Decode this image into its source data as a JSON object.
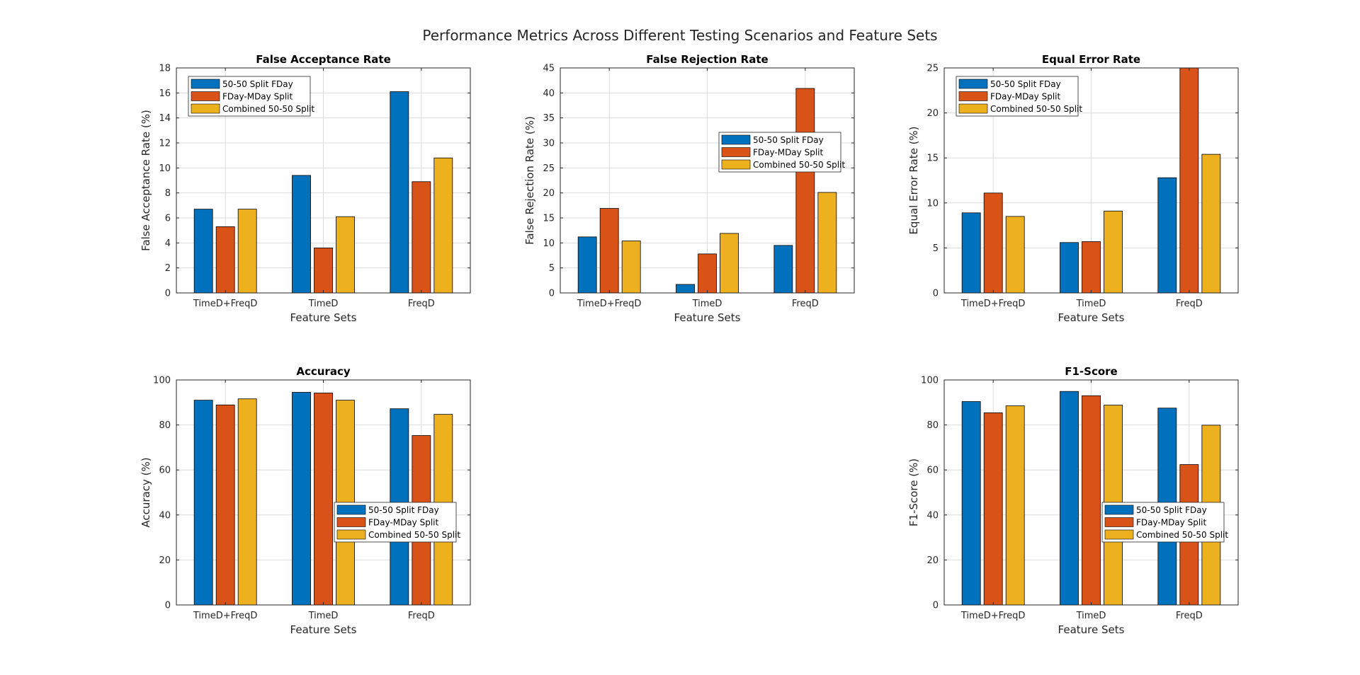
{
  "figure_title": "Performance Metrics Across Different Testing Scenarios and Feature Sets",
  "colors": {
    "series1": "#0072BD",
    "series2": "#D95319",
    "series3": "#EDB120"
  },
  "chart_data": [
    {
      "id": "far",
      "type": "bar",
      "title": "False Acceptance Rate",
      "xlabel": "Feature Sets",
      "ylabel": "False Acceptance Rate (%)",
      "categories": [
        "TimeD+FreqD",
        "TimeD",
        "FreqD"
      ],
      "ylim": [
        0,
        18
      ],
      "yticks": [
        0,
        2,
        4,
        6,
        8,
        10,
        12,
        14,
        16,
        18
      ],
      "grid": true,
      "legend_location": "top-left",
      "series": [
        {
          "name": "50-50 Split FDay",
          "values": [
            6.7,
            9.4,
            16.1
          ]
        },
        {
          "name": "FDay-MDay Split",
          "values": [
            5.3,
            3.6,
            8.9
          ]
        },
        {
          "name": "Combined 50-50 Split",
          "values": [
            6.7,
            6.1,
            10.8
          ]
        }
      ]
    },
    {
      "id": "frr",
      "type": "bar",
      "title": "False Rejection Rate",
      "xlabel": "Feature Sets",
      "ylabel": "False Rejection Rate (%)",
      "categories": [
        "TimeD+FreqD",
        "TimeD",
        "FreqD"
      ],
      "ylim": [
        0,
        45
      ],
      "yticks": [
        0,
        5,
        10,
        15,
        20,
        25,
        30,
        35,
        40,
        45
      ],
      "grid": true,
      "legend_location": "middle-right",
      "series": [
        {
          "name": "50-50 Split FDay",
          "values": [
            11.2,
            1.7,
            9.5
          ]
        },
        {
          "name": "FDay-MDay Split",
          "values": [
            16.9,
            7.8,
            40.9
          ]
        },
        {
          "name": "Combined 50-50 Split",
          "values": [
            10.4,
            11.9,
            20.1
          ]
        }
      ]
    },
    {
      "id": "eer",
      "type": "bar",
      "title": "Equal Error Rate",
      "xlabel": "Feature Sets",
      "ylabel": "Equal Error Rate (%)",
      "categories": [
        "TimeD+FreqD",
        "TimeD",
        "FreqD"
      ],
      "ylim": [
        0,
        25
      ],
      "yticks": [
        0,
        5,
        10,
        15,
        20,
        25
      ],
      "grid": true,
      "legend_location": "top-left",
      "series": [
        {
          "name": "50-50 Split FDay",
          "values": [
            8.9,
            5.6,
            12.8
          ]
        },
        {
          "name": "FDay-MDay Split",
          "values": [
            11.1,
            5.7,
            25.0
          ]
        },
        {
          "name": "Combined 50-50 Split",
          "values": [
            8.5,
            9.1,
            15.4
          ]
        }
      ]
    },
    {
      "id": "acc",
      "type": "bar",
      "title": "Accuracy",
      "xlabel": "Feature Sets",
      "ylabel": "Accuracy (%)",
      "categories": [
        "TimeD+FreqD",
        "TimeD",
        "FreqD"
      ],
      "ylim": [
        0,
        100
      ],
      "yticks": [
        0,
        20,
        40,
        60,
        80,
        100
      ],
      "grid": true,
      "legend_location": "bottom-right",
      "series": [
        {
          "name": "50-50 Split FDay",
          "values": [
            91.0,
            94.5,
            87.2
          ]
        },
        {
          "name": "FDay-MDay Split",
          "values": [
            88.9,
            94.2,
            75.3
          ]
        },
        {
          "name": "Combined 50-50 Split",
          "values": [
            91.6,
            91.0,
            84.7
          ]
        }
      ]
    },
    {
      "id": "f1",
      "type": "bar",
      "title": "F1-Score",
      "xlabel": "Feature Sets",
      "ylabel": "F1-Score (%)",
      "categories": [
        "TimeD+FreqD",
        "TimeD",
        "FreqD"
      ],
      "ylim": [
        0,
        100
      ],
      "yticks": [
        0,
        20,
        40,
        60,
        80,
        100
      ],
      "grid": true,
      "legend_location": "bottom-right",
      "series": [
        {
          "name": "50-50 Split FDay",
          "values": [
            90.4,
            94.9,
            87.5
          ]
        },
        {
          "name": "FDay-MDay Split",
          "values": [
            85.4,
            93.0,
            62.4
          ]
        },
        {
          "name": "Combined 50-50 Split",
          "values": [
            88.5,
            88.8,
            79.9
          ]
        }
      ]
    }
  ]
}
